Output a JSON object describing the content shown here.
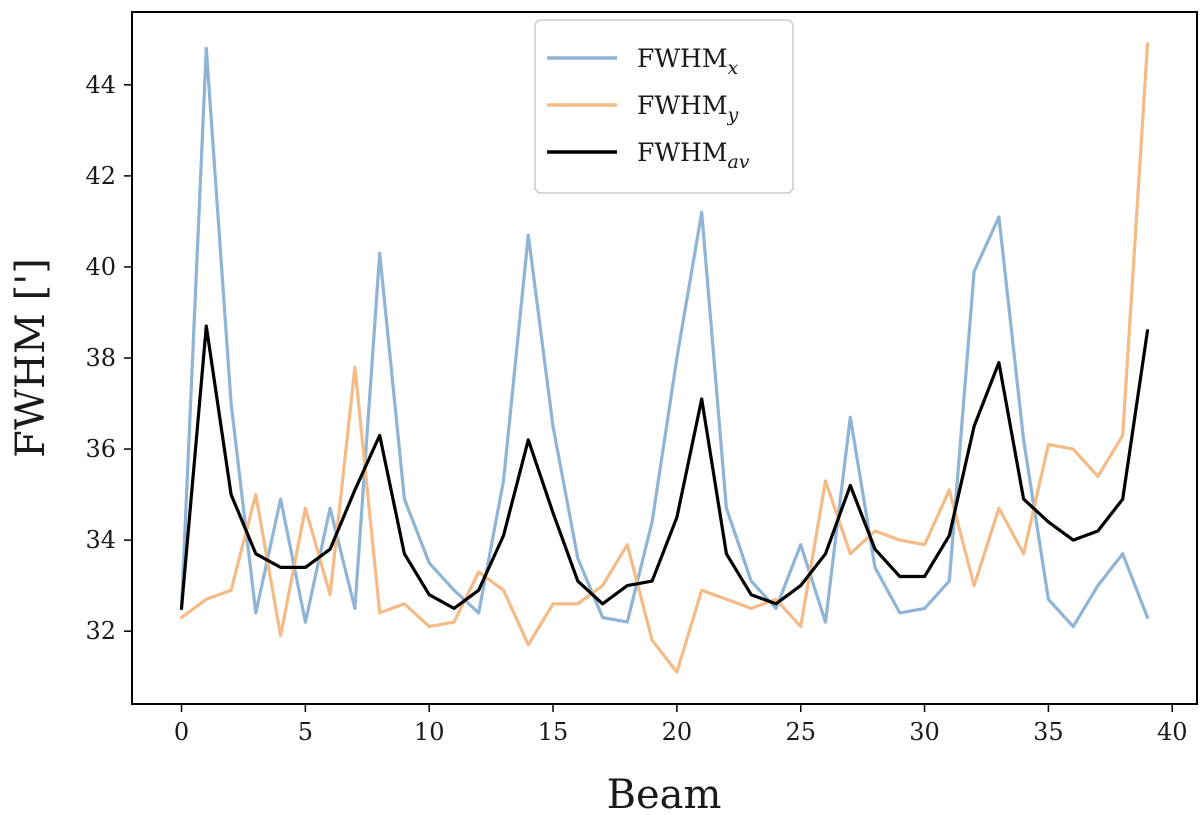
{
  "chart_data": {
    "type": "line",
    "title": "",
    "xlabel": "Beam",
    "ylabel": "FWHM [']",
    "xlim": [
      -2,
      41
    ],
    "ylim": [
      30.4,
      45.6
    ],
    "xticks": [
      0,
      5,
      10,
      15,
      20,
      25,
      30,
      35,
      40
    ],
    "yticks": [
      32,
      34,
      36,
      38,
      40,
      42,
      44
    ],
    "grid": false,
    "legend_position": "upper-center",
    "x": [
      0,
      1,
      2,
      3,
      4,
      5,
      6,
      7,
      8,
      9,
      10,
      11,
      12,
      13,
      14,
      15,
      16,
      17,
      18,
      19,
      20,
      21,
      22,
      23,
      24,
      25,
      26,
      27,
      28,
      29,
      30,
      31,
      32,
      33,
      34,
      35,
      36,
      37,
      38,
      39
    ],
    "series": [
      {
        "name": "FWHMx",
        "base": "FWHM",
        "sub": "x",
        "color": "#8fb4d6",
        "values": [
          32.5,
          44.8,
          37.0,
          32.4,
          34.9,
          32.2,
          34.7,
          32.5,
          40.3,
          34.9,
          33.5,
          32.9,
          32.4,
          35.3,
          40.7,
          36.5,
          33.6,
          32.3,
          32.2,
          34.4,
          38.0,
          41.2,
          34.7,
          33.1,
          32.5,
          33.9,
          32.2,
          36.7,
          33.4,
          32.4,
          32.5,
          33.1,
          39.9,
          41.1,
          36.2,
          32.7,
          32.1,
          33.0,
          33.7,
          32.3
        ]
      },
      {
        "name": "FWHMy",
        "base": "FWHM",
        "sub": "y",
        "color": "#f5bb87",
        "values": [
          32.3,
          32.7,
          32.9,
          35.0,
          31.9,
          34.7,
          32.8,
          37.8,
          32.4,
          32.6,
          32.1,
          32.2,
          33.3,
          32.9,
          31.7,
          32.6,
          32.6,
          33.0,
          33.9,
          31.8,
          31.1,
          32.9,
          32.7,
          32.5,
          32.7,
          32.1,
          35.3,
          33.7,
          34.2,
          34.0,
          33.9,
          35.1,
          33.0,
          34.7,
          33.7,
          36.1,
          36.0,
          35.4,
          36.3,
          44.9
        ]
      },
      {
        "name": "FWHMav",
        "base": "FWHM",
        "sub": "av",
        "color": "#000000",
        "values": [
          32.5,
          38.7,
          35.0,
          33.7,
          33.4,
          33.4,
          33.8,
          35.1,
          36.3,
          33.7,
          32.8,
          32.5,
          32.9,
          34.1,
          36.2,
          34.6,
          33.1,
          32.6,
          33.0,
          33.1,
          34.5,
          37.1,
          33.7,
          32.8,
          32.6,
          33.0,
          33.7,
          35.2,
          33.8,
          33.2,
          33.2,
          34.1,
          36.5,
          37.9,
          34.9,
          34.4,
          34.0,
          34.2,
          34.9,
          38.6
        ]
      }
    ]
  }
}
